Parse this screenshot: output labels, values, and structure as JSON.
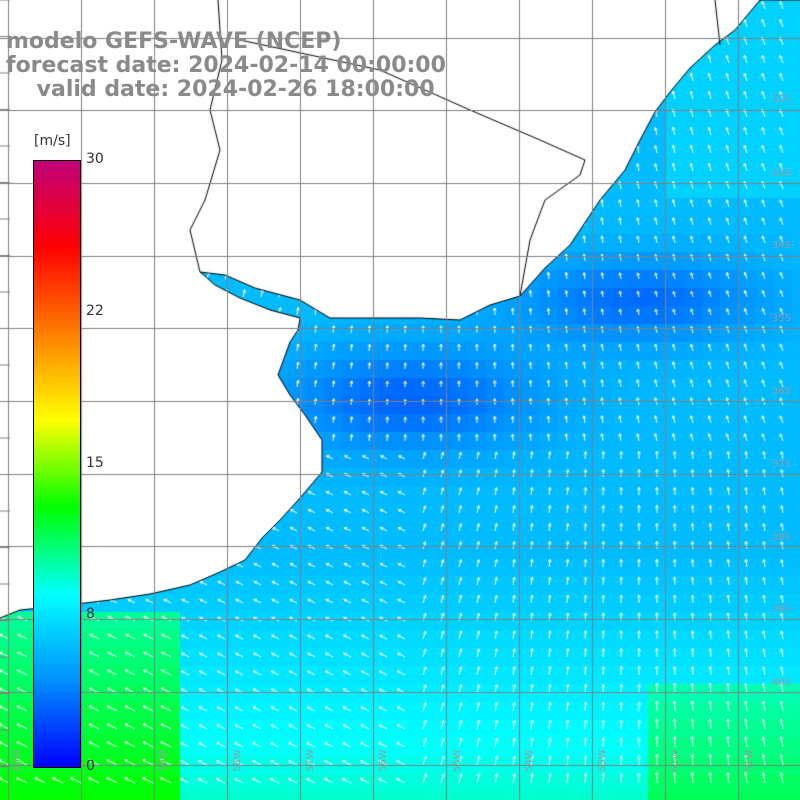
{
  "title": {
    "line1": "modelo GEFS-WAVE (NCEP)",
    "line2": "forecast date: 2024-02-14 00:00:00",
    "line3": "    valid date: 2024-02-26 18:00:00"
  },
  "colorbar": {
    "unit": "[m/s]",
    "ticks": [
      "0",
      "8",
      "15",
      "22",
      "30"
    ],
    "min": 0,
    "max": 30,
    "stops": [
      "#0000ff",
      "#0090ff",
      "#00ffff",
      "#00ff00",
      "#ffff00",
      "#ff8000",
      "#ff0000",
      "#c0007a"
    ]
  },
  "map": {
    "lat_labels": [
      "32S",
      "33S",
      "34S",
      "35S",
      "36S",
      "37S",
      "38S",
      "39S",
      "40S"
    ],
    "lon_labels": [
      "60W",
      "59W",
      "58W",
      "57W",
      "56W",
      "55W",
      "54W",
      "53W",
      "52W",
      "51W"
    ],
    "land_color": "#ffffff",
    "grid_color": "#808080",
    "arrow_color": "#ffffff"
  }
}
